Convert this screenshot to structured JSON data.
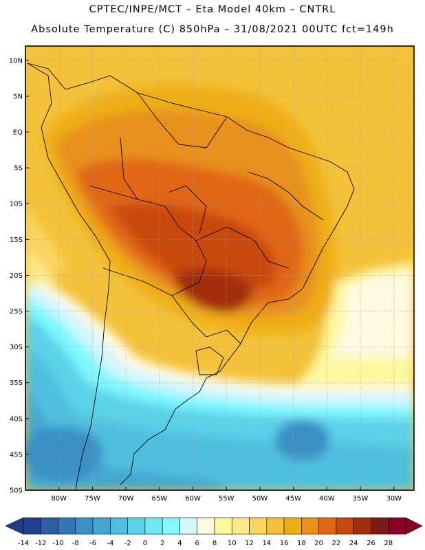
{
  "header": {
    "line1": "CPTEC/INPE/MCT –  Eta Model 40km – CNTRL",
    "line2": "Absolute Temperature (C) 850hPa – 31/08/2021 00UTC fct=149h"
  },
  "map": {
    "lat_labels": [
      "10N",
      "5N",
      "EQ",
      "5S",
      "10S",
      "15S",
      "20S",
      "25S",
      "30S",
      "35S",
      "40S",
      "45S",
      "50S"
    ],
    "lon_labels": [
      "80W",
      "75W",
      "70W",
      "65W",
      "60W",
      "55W",
      "50W",
      "45W",
      "40W",
      "35W",
      "30W"
    ]
  },
  "colorbar": {
    "labels": [
      "-14",
      "-12",
      "-10",
      "-8",
      "-6",
      "-4",
      "-2",
      "0",
      "2",
      "4",
      "6",
      "8",
      "10",
      "12",
      "14",
      "16",
      "18",
      "20",
      "22",
      "24",
      "26",
      "28"
    ],
    "colors": [
      "#213f8c",
      "#2d5ea5",
      "#3477b7",
      "#3a8fc5",
      "#44a7d2",
      "#4fbfdf",
      "#5ad2e8",
      "#6ee8f2",
      "#7ff8ff",
      "#d4f6ff",
      "#fff9e0",
      "#fff79e",
      "#fde888",
      "#f9d561",
      "#f3c23a",
      "#efae13",
      "#e8901a",
      "#e16616",
      "#c94810",
      "#a32e0d",
      "#7c1a13",
      "#8b0022"
    ],
    "under_color": "#233a87",
    "over_color": "#8a0027"
  }
}
